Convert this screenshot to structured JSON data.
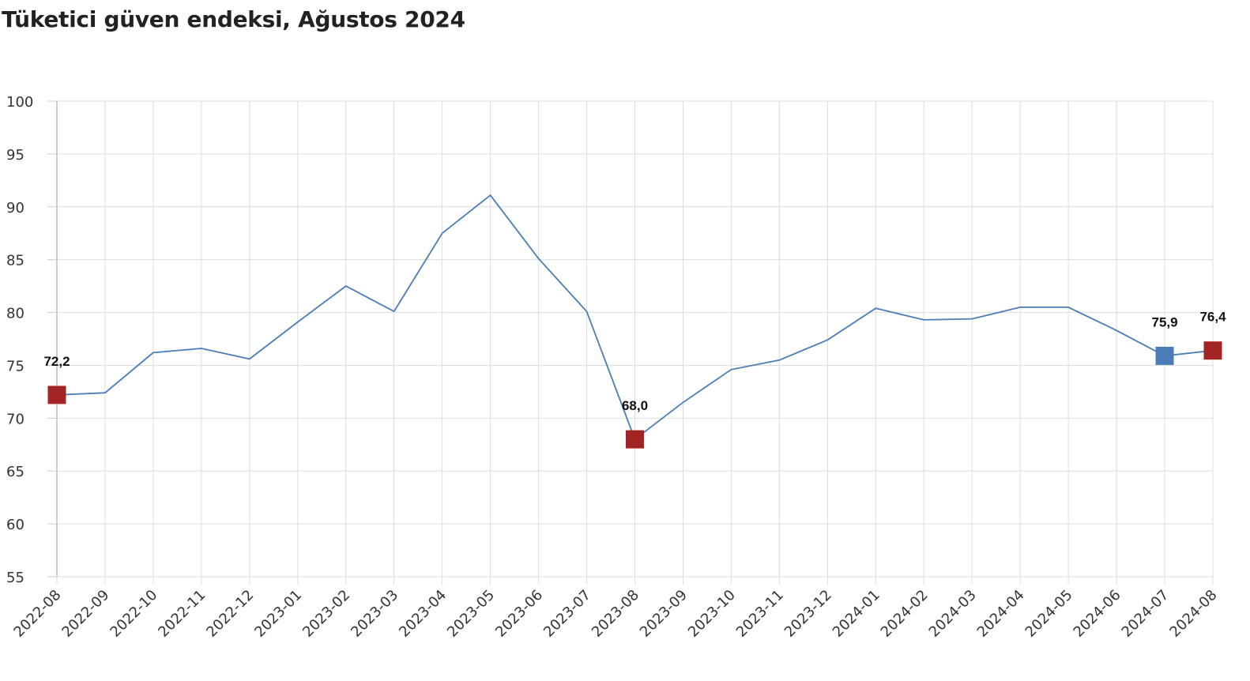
{
  "chart_data": {
    "type": "line",
    "title": "Tüketici güven endeksi, Ağustos 2024",
    "xlabel": "",
    "ylabel": "",
    "ylim": [
      55,
      100
    ],
    "yticks": [
      55,
      60,
      65,
      70,
      75,
      80,
      85,
      90,
      95,
      100
    ],
    "grid": true,
    "colors": {
      "line": "#4a7db5",
      "marker_red": "#a32424",
      "marker_blue": "#4a7db5"
    },
    "categories": [
      "2022-08",
      "2022-09",
      "2022-10",
      "2022-11",
      "2022-12",
      "2023-01",
      "2023-02",
      "2023-03",
      "2023-04",
      "2023-05",
      "2023-06",
      "2023-07",
      "2023-08",
      "2023-09",
      "2023-10",
      "2023-11",
      "2023-12",
      "2024-01",
      "2024-02",
      "2024-03",
      "2024-04",
      "2024-05",
      "2024-06",
      "2024-07",
      "2024-08"
    ],
    "series": [
      {
        "values": [
          72.2,
          72.4,
          76.2,
          76.6,
          75.6,
          79.1,
          82.5,
          80.1,
          87.5,
          91.1,
          85.1,
          80.1,
          68.0,
          71.5,
          74.6,
          75.5,
          77.4,
          80.4,
          79.3,
          79.4,
          80.5,
          80.5,
          78.3,
          75.9,
          76.4
        ]
      }
    ],
    "markers": [
      {
        "index": 0,
        "label": "72,2",
        "color": "red"
      },
      {
        "index": 12,
        "label": "68,0",
        "color": "red"
      },
      {
        "index": 23,
        "label": "75,9",
        "color": "blue"
      },
      {
        "index": 24,
        "label": "76,4",
        "color": "red"
      }
    ]
  }
}
